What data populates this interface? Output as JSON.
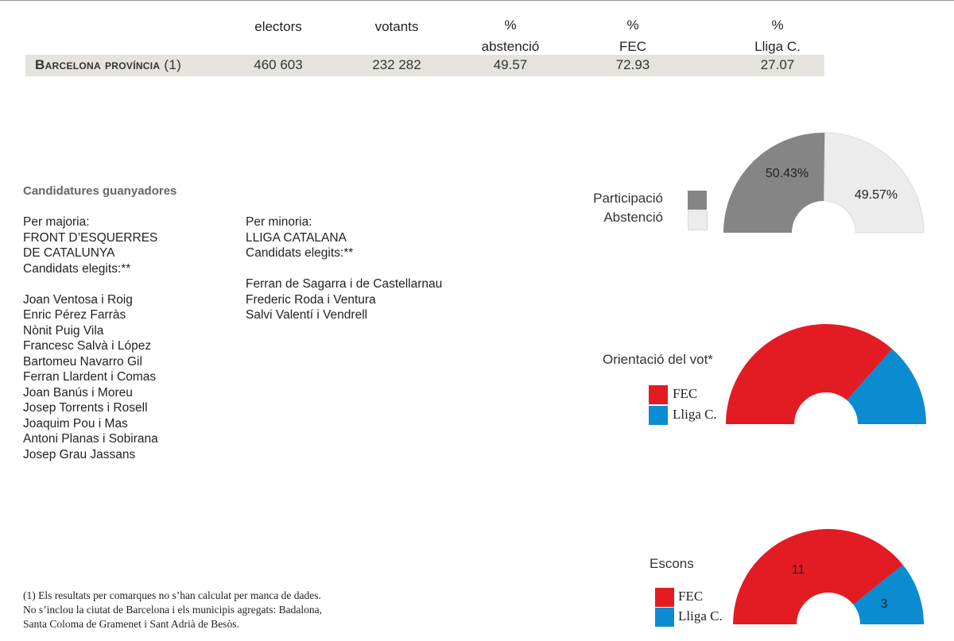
{
  "table": {
    "headers": [
      {
        "pct": "",
        "label": "electors"
      },
      {
        "pct": "",
        "label": "votants"
      },
      {
        "pct": "%",
        "label": "abstenció"
      },
      {
        "pct": "%",
        "label": "FEC"
      },
      {
        "pct": "%",
        "label": "Lliga C."
      }
    ],
    "row": {
      "label": "Barcelona província",
      "note": "(1)",
      "values": [
        "460 603",
        "232 282",
        "49.57",
        "72.93",
        "27.07"
      ]
    }
  },
  "candidates": {
    "title": "Candidatures guanyadores",
    "majority": {
      "heading": "Per majoria:",
      "party_line1": "FRONT D’ESQUERRES",
      "party_line2": "DE CATALUNYA",
      "elected_label": "Candidats elegits:**",
      "names": [
        "Joan Ventosa i Roig",
        "Enric Pérez Farràs",
        "Nònit Puig Vila",
        "Francesc Salvà i López",
        "Bartomeu Navarro Gil",
        "Ferran Llardent i Comas",
        "Joan Banús i Moreu",
        "Josep Torrents i Rosell",
        "Joaquim Pou i Mas",
        "Antoni Planas i Sobirana",
        "Josep Grau Jassans"
      ]
    },
    "minority": {
      "heading": "Per minoria:",
      "party": "LLIGA CATALANA",
      "elected_label": "Candidats elegits:**",
      "names": [
        "Ferran de Sagarra i de Castellarnau",
        "Frederic Roda i Ventura",
        "Salvi Valentí i Vendrell"
      ]
    }
  },
  "colors": {
    "participation": "#858585",
    "abstention": "#ececec",
    "fec": "#e31b23",
    "lliga": "#0b8bd0"
  },
  "chart_data": [
    {
      "type": "pie",
      "variant": "semicircle-donut",
      "legend": [
        "Participació",
        "Abstenció"
      ],
      "slices": [
        {
          "name": "Participació",
          "value": 50.43,
          "label": "50.43%"
        },
        {
          "name": "Abstenció",
          "value": 49.57,
          "label": "49.57%"
        }
      ]
    },
    {
      "type": "pie",
      "variant": "semicircle-donut",
      "title": "Orientació del vot*",
      "legend": [
        "FEC",
        "Lliga C."
      ],
      "slices": [
        {
          "name": "FEC",
          "value": 72.93
        },
        {
          "name": "Lliga C.",
          "value": 27.07
        }
      ]
    },
    {
      "type": "pie",
      "variant": "semicircle-donut",
      "title": "Escons",
      "legend": [
        "FEC",
        "Lliga C."
      ],
      "slices": [
        {
          "name": "FEC",
          "value": 11,
          "label": "11"
        },
        {
          "name": "Lliga C.",
          "value": 3,
          "label": "3"
        }
      ]
    }
  ],
  "footnote": [
    "(1) Els resultats per comarques no s’han calculat per manca de dades.",
    "No s’inclou la ciutat de Barcelona i els municipis agregats: Badalona,",
    "Santa Coloma de Gramenet i Sant Adrià de Besòs."
  ]
}
